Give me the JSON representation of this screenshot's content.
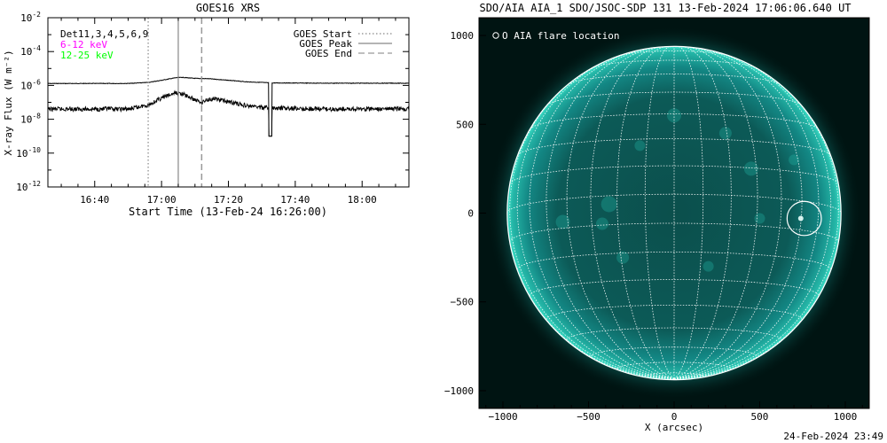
{
  "chart_data": [
    {
      "type": "line",
      "title": "GOES16 XRS",
      "xlabel": "Start Time (13-Feb-24 16:26:00)",
      "ylabel": "X-ray Flux (W m⁻²)",
      "y_scale": "log",
      "ylim": [
        1e-12,
        0.01
      ],
      "xlim": [
        "16:26",
        "18:14"
      ],
      "x_ticks": [
        "16:40",
        "17:00",
        "17:20",
        "17:40",
        "18:00"
      ],
      "y_ticks": [
        {
          "base": "10",
          "exp": "-12",
          "value": 1e-12
        },
        {
          "base": "10",
          "exp": "-10",
          "value": 1e-10
        },
        {
          "base": "10",
          "exp": "-8",
          "value": 1e-08
        },
        {
          "base": "10",
          "exp": "-6",
          "value": 1e-06
        },
        {
          "base": "10",
          "exp": "-4",
          "value": 0.0001
        },
        {
          "base": "10",
          "exp": "-2",
          "value": 0.01
        }
      ],
      "detector_label": "Det11,3,4,5,6,9",
      "series": [
        {
          "name": "6-12 keV",
          "color": "#ff00ff",
          "x": [
            "16:26",
            "16:50",
            "16:56",
            "17:00",
            "17:04",
            "17:06",
            "17:10",
            "17:14",
            "17:20",
            "17:26",
            "17:30",
            "17:33",
            "17:34",
            "17:50",
            "18:14"
          ],
          "y": [
            1.3e-06,
            1.3e-06,
            1.5e-06,
            2e-06,
            2.8e-06,
            3e-06,
            2.6e-06,
            2.5e-06,
            2e-06,
            1.6e-06,
            1.5e-06,
            1.4e-06,
            1.4e-06,
            1.35e-06,
            1.35e-06
          ]
        },
        {
          "name": "12-25 keV",
          "color": "#00ff00",
          "x": [
            "16:26",
            "16:50",
            "16:56",
            "17:00",
            "17:04",
            "17:06",
            "17:10",
            "17:12",
            "17:14",
            "17:16",
            "17:20",
            "17:26",
            "17:30",
            "17:33",
            "17:34",
            "17:50",
            "18:14"
          ],
          "y": [
            4e-08,
            4e-08,
            7e-08,
            1.8e-07,
            3.5e-07,
            3.3e-07,
            1.4e-07,
            1e-07,
            1.5e-07,
            1.6e-07,
            1.1e-07,
            6e-08,
            5e-08,
            4.5e-08,
            4.5e-08,
            4e-08,
            4e-08
          ]
        }
      ],
      "dropouts": [
        {
          "start": "17:32",
          "end": "17:33",
          "flux": 1e-09
        }
      ],
      "markers": [
        {
          "name": "GOES Start",
          "time": "16:56",
          "style": "dotted"
        },
        {
          "name": "GOES Peak",
          "time": "17:05",
          "style": "solid"
        },
        {
          "name": "GOES End",
          "time": "17:12",
          "style": "dashed"
        }
      ],
      "legend_placement": "top-right",
      "grid": false
    },
    {
      "type": "image",
      "title": "SDO/AIA AIA_1 SDO/JSOC-SDP 131 13-Feb-2024 17:06:06.640 UT",
      "xlabel": "X (arcsec)",
      "ylabel": "",
      "xlim": [
        -1140,
        1140
      ],
      "ylim": [
        -1100,
        1100
      ],
      "x_ticks": [
        "−1000",
        "−500",
        "0",
        "500",
        "1000"
      ],
      "y_ticks": [
        "1000",
        "500",
        "0",
        "−500",
        "−1000"
      ],
      "solar_radius_arcsec": 975,
      "grid": true,
      "legend": "O AIA flare location",
      "legend_placement": "top-left",
      "flare_location": {
        "x": 760,
        "y": -30,
        "radius": 100
      },
      "colors": {
        "disk": "#0c5a57",
        "limb": "#2fd3bf",
        "background": "#001412",
        "grid": "#ffffff"
      }
    }
  ],
  "footer": {
    "timestamp": "24-Feb-2024 23:49"
  }
}
